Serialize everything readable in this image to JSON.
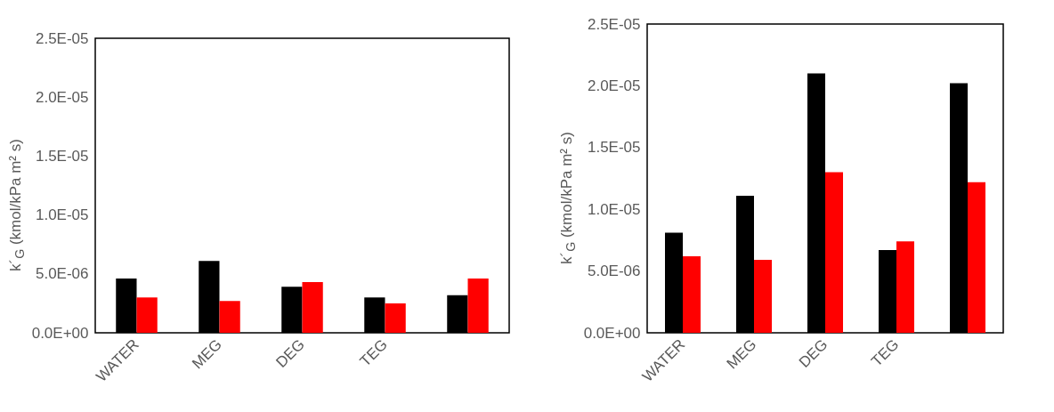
{
  "chart_data": [
    {
      "type": "bar",
      "ylabel": "k´$_{G}$ (kmol/kPa m² s)",
      "categories": [
        "WATER",
        "MEG",
        "DEG",
        "TEG",
        null
      ],
      "series": [
        {
          "color": "#000000",
          "values": [
            4.6e-06,
            6.1e-06,
            3.9e-06,
            3e-06,
            3.2e-06
          ]
        },
        {
          "color": "#ff0000",
          "values": [
            3e-06,
            2.7e-06,
            4.3e-06,
            2.5e-06,
            4.6e-06
          ]
        }
      ],
      "ylim": [
        0,
        2.5e-05
      ],
      "yticks": [
        {
          "value": 0,
          "label": "0.0E+00"
        },
        {
          "value": 5e-06,
          "label": "5.0E-06"
        },
        {
          "value": 1e-05,
          "label": "1.0E-05"
        },
        {
          "value": 1.5e-05,
          "label": "1.5E-05"
        },
        {
          "value": 2e-05,
          "label": "2.0E-05"
        },
        {
          "value": 2.5e-05,
          "label": "2.5E-05"
        }
      ]
    },
    {
      "type": "bar",
      "ylabel": "k´$_{G}$ (kmol/kPa m² s)",
      "categories": [
        "WATER",
        "MEG",
        "DEG",
        "TEG",
        null
      ],
      "series": [
        {
          "color": "#000000",
          "values": [
            8.1e-06,
            1.11e-05,
            2.1e-05,
            6.7e-06,
            2.02e-05
          ]
        },
        {
          "color": "#ff0000",
          "values": [
            6.2e-06,
            5.9e-06,
            1.3e-05,
            7.4e-06,
            1.22e-05
          ]
        }
      ],
      "ylim": [
        0,
        2.5e-05
      ],
      "yticks": [
        {
          "value": 0,
          "label": "0.0E+00"
        },
        {
          "value": 5e-06,
          "label": "5.0E-06"
        },
        {
          "value": 1e-05,
          "label": "1.0E-05"
        },
        {
          "value": 1.5e-05,
          "label": "1.5E-05"
        },
        {
          "value": 2e-05,
          "label": "2.0E-05"
        },
        {
          "value": 2.5e-05,
          "label": "2.5E-05"
        }
      ]
    }
  ]
}
